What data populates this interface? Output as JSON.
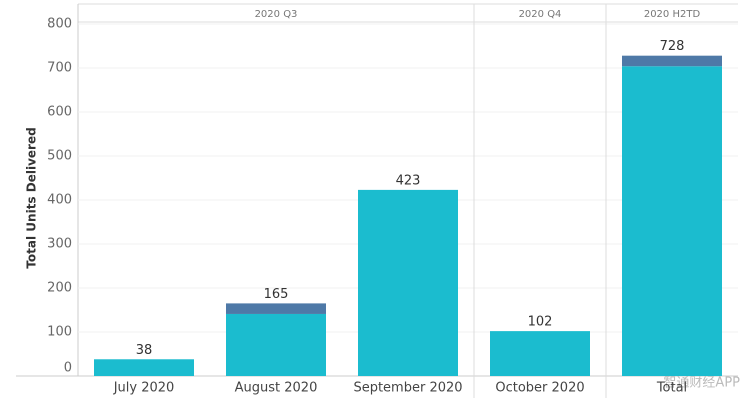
{
  "chart_data": {
    "type": "stacked-bar",
    "y_label": "Total Units Delivered",
    "groups": [
      "2020 Q3",
      "2020 Q4",
      "2020 H2TD"
    ],
    "categories": [
      "July 2020",
      "August 2020",
      "September 2020",
      "October 2020",
      "Total"
    ],
    "series": [
      {
        "color": "#1bbccf",
        "values": [
          38,
          141,
          423,
          102,
          704
        ]
      },
      {
        "color": "#4e79a7",
        "values": [
          0,
          24,
          0,
          0,
          24
        ]
      }
    ],
    "totals": [
      38,
      165,
      423,
      102,
      728
    ],
    "ylim": [
      0,
      800
    ],
    "yticks": [
      0,
      100,
      200,
      300,
      400,
      500,
      600,
      700,
      800
    ],
    "grid": true,
    "watermark": "智通财经APP"
  }
}
